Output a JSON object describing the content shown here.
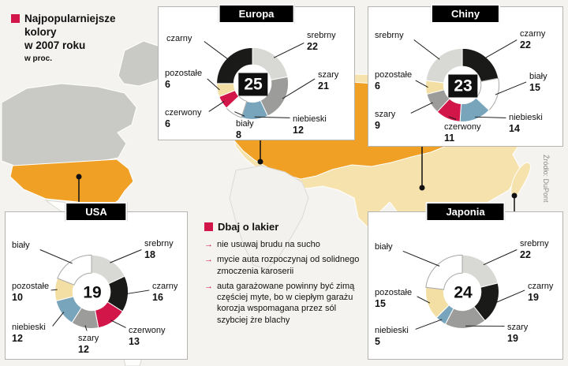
{
  "legend": {
    "title_lines": [
      "Najpopularniejsze",
      "kolory",
      "w 2007 roku"
    ],
    "subtitle": "w proc."
  },
  "source": "Źródło: DuPont",
  "icons": {
    "tip_arrow": "→"
  },
  "care": {
    "heading": "Dbaj o lakier",
    "tips": [
      "nie usuwaj brudu na sucho",
      "mycie auta rozpoczynaj od solidnego zmoczenia karoserii",
      "auta garażowane powinny być zimą częściej myte, bo w ciepłym garażu korozja wspomagana przez sól szybciej żre blachy"
    ]
  },
  "palette": {
    "czarny": "#1a1a18",
    "srebrny": "#d8d8d4",
    "szary": "#9c9c9a",
    "niebieski": "#79a5bc",
    "bialy": "#ffffff",
    "czerwony": "#d2164a",
    "pozostale": "#f3dfa3",
    "accent_red": "#d2164a",
    "map_orange": "#f0a125",
    "map_beige": "#f6e2ac",
    "map_gray": "#c9c9c5"
  },
  "chart_data": [
    {
      "type": "pie",
      "title": "Europa",
      "center_value": 25,
      "segments": [
        {
          "label": "srebrny",
          "value": 22,
          "color_key": "srebrny"
        },
        {
          "label": "szary",
          "value": 21,
          "color_key": "szary"
        },
        {
          "label": "niebieski",
          "value": 12,
          "color_key": "niebieski"
        },
        {
          "label": "biały",
          "value": 8,
          "color_key": "bialy"
        },
        {
          "label": "czerwony",
          "value": 6,
          "color_key": "czerwony"
        },
        {
          "label": "pozostałe",
          "value": 6,
          "color_key": "pozostale"
        },
        {
          "label": "czarny",
          "value": 25,
          "color_key": "czarny",
          "in_center": true
        }
      ]
    },
    {
      "type": "pie",
      "title": "Chiny",
      "center_value": 23,
      "segments": [
        {
          "label": "czarny",
          "value": 22,
          "color_key": "czarny"
        },
        {
          "label": "biały",
          "value": 15,
          "color_key": "bialy"
        },
        {
          "label": "niebieski",
          "value": 14,
          "color_key": "niebieski"
        },
        {
          "label": "czerwony",
          "value": 11,
          "color_key": "czerwony"
        },
        {
          "label": "szary",
          "value": 9,
          "color_key": "szary"
        },
        {
          "label": "pozostałe",
          "value": 6,
          "color_key": "pozostale"
        },
        {
          "label": "srebrny",
          "value": 23,
          "color_key": "srebrny",
          "in_center": true
        }
      ]
    },
    {
      "type": "pie",
      "title": "USA",
      "center_value": 19,
      "segments": [
        {
          "label": "srebrny",
          "value": 18,
          "color_key": "srebrny"
        },
        {
          "label": "czarny",
          "value": 16,
          "color_key": "czarny"
        },
        {
          "label": "czerwony",
          "value": 13,
          "color_key": "czerwony"
        },
        {
          "label": "szary",
          "value": 12,
          "color_key": "szary"
        },
        {
          "label": "niebieski",
          "value": 12,
          "color_key": "niebieski"
        },
        {
          "label": "pozostałe",
          "value": 10,
          "color_key": "pozostale"
        },
        {
          "label": "biały",
          "value": 19,
          "color_key": "bialy",
          "in_center": true
        }
      ]
    },
    {
      "type": "pie",
      "title": "Japonia",
      "center_value": 24,
      "segments": [
        {
          "label": "srebrny",
          "value": 22,
          "color_key": "srebrny"
        },
        {
          "label": "czarny",
          "value": 19,
          "color_key": "czarny"
        },
        {
          "label": "szary",
          "value": 19,
          "color_key": "szary"
        },
        {
          "label": "niebieski",
          "value": 5,
          "color_key": "niebieski"
        },
        {
          "label": "pozostałe",
          "value": 15,
          "color_key": "pozostale"
        },
        {
          "label": "biały",
          "value": 24,
          "color_key": "bialy",
          "in_center": true
        }
      ]
    }
  ]
}
